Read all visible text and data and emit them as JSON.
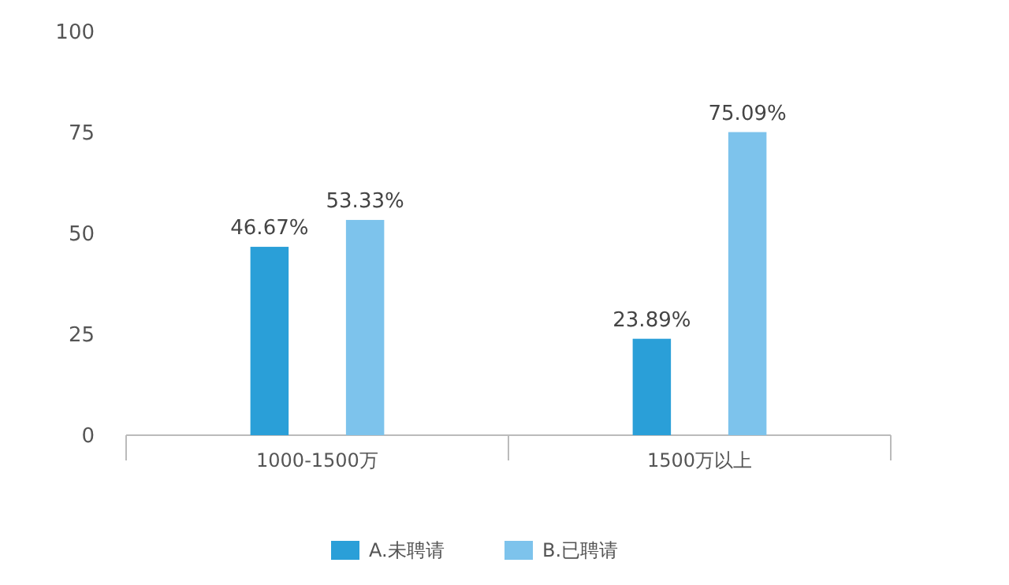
{
  "chart_data": {
    "type": "bar",
    "categories": [
      "1000-1500万",
      "1500万以上"
    ],
    "series": [
      {
        "name": "A.未聘请",
        "color": "#2a9fd8",
        "values": [
          46.67,
          23.89
        ],
        "value_labels": [
          "46.67%",
          "23.89%"
        ]
      },
      {
        "name": "B.已聘请",
        "color": "#7dc3ec",
        "values": [
          53.33,
          75.09
        ],
        "value_labels": [
          "53.33%",
          "75.09%"
        ]
      }
    ],
    "ylim": [
      0,
      100
    ],
    "yticks": [
      0,
      25,
      50,
      75,
      100
    ],
    "grid": false,
    "legend": "bottom"
  }
}
